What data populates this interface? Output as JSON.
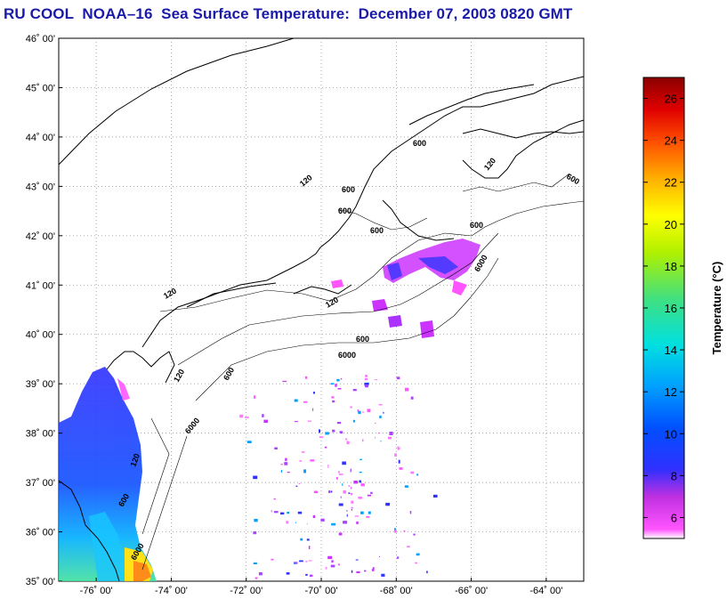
{
  "title": "RU COOL  NOAA–16  Sea Surface Temperature:  December 07, 2003 0820 GMT",
  "map": {
    "lon_range": [
      -77,
      -63
    ],
    "lat_range": [
      35,
      46
    ],
    "lat_ticks": [
      {
        "value": 46,
        "label": "46˚ 00'"
      },
      {
        "value": 45,
        "label": "45˚ 00'"
      },
      {
        "value": 44,
        "label": "44˚ 00'"
      },
      {
        "value": 43,
        "label": "43˚ 00'"
      },
      {
        "value": 42,
        "label": "42˚ 00'"
      },
      {
        "value": 41,
        "label": "41˚ 00'"
      },
      {
        "value": 40,
        "label": "40˚ 00'"
      },
      {
        "value": 39,
        "label": "39˚ 00'"
      },
      {
        "value": 38,
        "label": "38˚ 00'"
      },
      {
        "value": 37,
        "label": "37˚ 00'"
      },
      {
        "value": 36,
        "label": "36˚ 00'"
      },
      {
        "value": 35,
        "label": "35˚ 00'"
      }
    ],
    "lon_ticks": [
      {
        "value": -76,
        "label": "-76˚ 00'"
      },
      {
        "value": -74,
        "label": "-74˚ 00'"
      },
      {
        "value": -72,
        "label": "-72˚ 00'"
      },
      {
        "value": -70,
        "label": "-70˚ 00'"
      },
      {
        "value": -68,
        "label": "-68˚ 00'"
      },
      {
        "value": -66,
        "label": "-66˚ 00'"
      },
      {
        "value": -64,
        "label": "-64˚ 00'"
      }
    ],
    "grid": "dotted",
    "contour_labels": [
      "120",
      "600",
      "6000"
    ]
  },
  "colorbar": {
    "label": "Temperature (°C)",
    "min": 5,
    "max": 27,
    "ticks": [
      "6",
      "8",
      "10",
      "12",
      "14",
      "16",
      "18",
      "20",
      "22",
      "24",
      "26"
    ],
    "tick_values": [
      6,
      8,
      10,
      12,
      14,
      16,
      18,
      20,
      22,
      24,
      26
    ]
  },
  "colors": {
    "title": "#1a1aa8",
    "warm": "#8b0000",
    "cold": "#ff44ff"
  }
}
